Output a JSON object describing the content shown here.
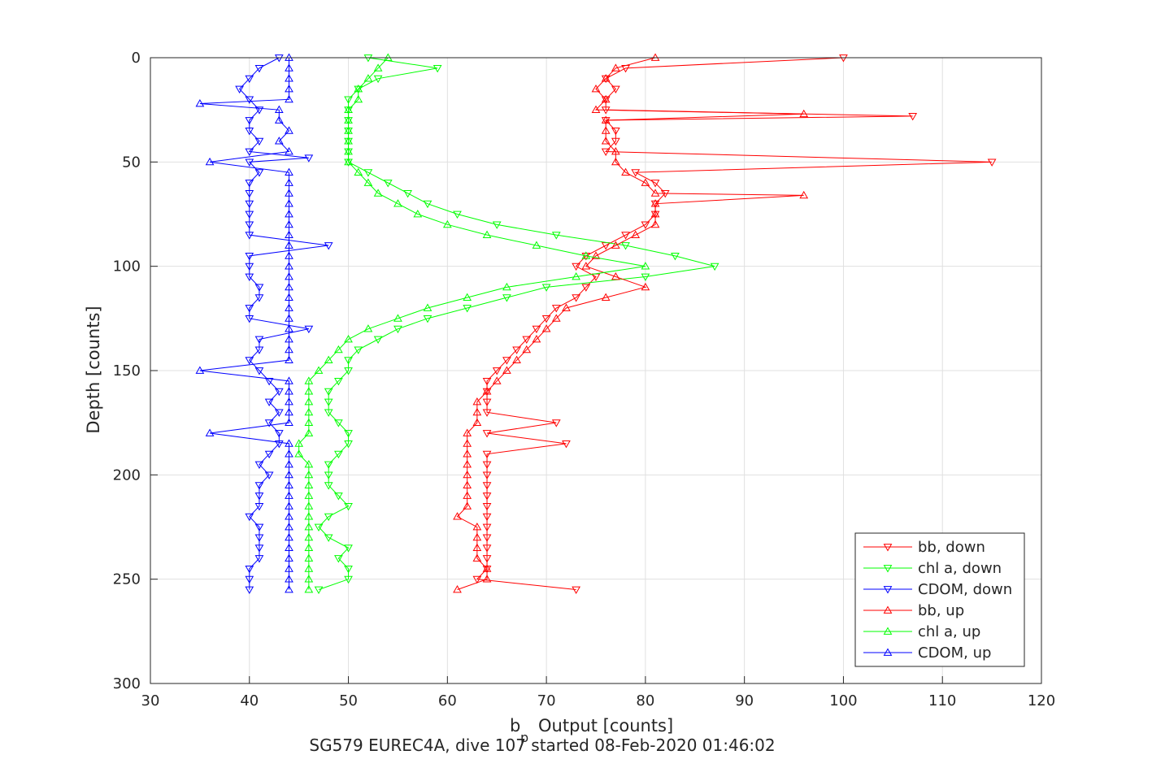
{
  "chart_data": {
    "type": "line",
    "xlabel": "Output [counts]",
    "xlabel_main": "b",
    "xlabel_sub": "p",
    "ylabel": "Depth [counts]",
    "caption": "SG579 EUREC4A, dive 107 started 08-Feb-2020 01:46:02",
    "xlim": [
      30,
      120
    ],
    "ylim": [
      0,
      300
    ],
    "y_reversed": true,
    "x_ticks": [
      30,
      40,
      50,
      60,
      70,
      80,
      90,
      100,
      110,
      120
    ],
    "y_ticks": [
      0,
      50,
      100,
      150,
      200,
      250,
      300
    ],
    "grid": true,
    "legend_position": "bottom-right",
    "series": [
      {
        "name": "bb, down",
        "color": "#ff0000",
        "marker": "triangle-down",
        "depth": [
          0,
          5,
          10,
          15,
          20,
          25,
          28,
          30,
          35,
          40,
          45,
          50,
          55,
          60,
          65,
          70,
          75,
          80,
          85,
          90,
          95,
          100,
          105,
          110,
          115,
          120,
          125,
          130,
          135,
          140,
          145,
          150,
          155,
          160,
          165,
          170,
          175,
          180,
          185,
          190,
          195,
          200,
          205,
          210,
          215,
          220,
          225,
          230,
          235,
          240,
          245,
          250,
          255
        ],
        "values": [
          100,
          78,
          76,
          77,
          76,
          76,
          107,
          76,
          77,
          77,
          76,
          115,
          79,
          81,
          82,
          81,
          81,
          80,
          78,
          76,
          74,
          73,
          75,
          74,
          73,
          71,
          70,
          69,
          68,
          67,
          66,
          65,
          64,
          64,
          64,
          64,
          71,
          64,
          72,
          64,
          64,
          64,
          64,
          64,
          64,
          64,
          64,
          64,
          64,
          64,
          64,
          63,
          73
        ]
      },
      {
        "name": "chl a, down",
        "color": "#00ff00",
        "marker": "triangle-down",
        "depth": [
          0,
          5,
          10,
          15,
          20,
          25,
          30,
          35,
          40,
          45,
          50,
          55,
          60,
          65,
          70,
          75,
          80,
          85,
          90,
          95,
          100,
          105,
          110,
          115,
          120,
          125,
          130,
          135,
          140,
          145,
          150,
          155,
          160,
          165,
          170,
          175,
          180,
          185,
          190,
          195,
          200,
          205,
          210,
          215,
          220,
          225,
          230,
          235,
          240,
          245,
          250,
          255
        ],
        "values": [
          52,
          59,
          53,
          51,
          50,
          50,
          50,
          50,
          50,
          50,
          50,
          52,
          54,
          56,
          58,
          61,
          65,
          71,
          78,
          83,
          87,
          80,
          70,
          66,
          62,
          58,
          55,
          53,
          51,
          50,
          50,
          49,
          48,
          48,
          48,
          49,
          50,
          50,
          49,
          48,
          48,
          48,
          49,
          50,
          48,
          47,
          48,
          50,
          49,
          50,
          50,
          47
        ]
      },
      {
        "name": "CDOM, down",
        "color": "#0000ff",
        "marker": "triangle-down",
        "depth": [
          0,
          5,
          10,
          15,
          20,
          25,
          30,
          35,
          40,
          45,
          48,
          50,
          55,
          60,
          65,
          70,
          75,
          80,
          85,
          90,
          95,
          100,
          105,
          110,
          115,
          120,
          125,
          130,
          135,
          140,
          145,
          150,
          155,
          160,
          165,
          170,
          175,
          180,
          185,
          190,
          195,
          200,
          205,
          210,
          215,
          220,
          225,
          230,
          235,
          240,
          245,
          250,
          255
        ],
        "values": [
          43,
          41,
          40,
          39,
          40,
          41,
          40,
          40,
          41,
          40,
          46,
          40,
          41,
          40,
          40,
          40,
          40,
          40,
          40,
          48,
          40,
          40,
          40,
          41,
          41,
          40,
          40,
          46,
          41,
          41,
          40,
          41,
          42,
          43,
          42,
          43,
          42,
          43,
          43,
          42,
          41,
          42,
          41,
          41,
          41,
          40,
          41,
          41,
          41,
          41,
          40,
          40,
          40
        ]
      },
      {
        "name": "bb, up",
        "color": "#ff0000",
        "marker": "triangle-up",
        "depth": [
          0,
          5,
          10,
          15,
          20,
          25,
          27,
          30,
          35,
          40,
          45,
          50,
          55,
          60,
          65,
          66,
          70,
          75,
          80,
          85,
          90,
          95,
          100,
          105,
          110,
          115,
          120,
          125,
          130,
          135,
          140,
          145,
          150,
          155,
          160,
          165,
          170,
          175,
          180,
          185,
          190,
          195,
          200,
          205,
          210,
          215,
          220,
          225,
          230,
          235,
          240,
          245,
          250,
          255
        ],
        "values": [
          81,
          77,
          76,
          75,
          76,
          75,
          96,
          76,
          76,
          76,
          77,
          77,
          78,
          80,
          81,
          96,
          81,
          81,
          81,
          79,
          77,
          75,
          74,
          77,
          80,
          76,
          72,
          71,
          70,
          69,
          68,
          67,
          66,
          65,
          64,
          63,
          63,
          63,
          62,
          62,
          62,
          62,
          62,
          62,
          62,
          62,
          61,
          63,
          63,
          63,
          63,
          64,
          64,
          61
        ]
      },
      {
        "name": "chl a, up",
        "color": "#00ff00",
        "marker": "triangle-up",
        "depth": [
          0,
          5,
          10,
          15,
          20,
          25,
          30,
          35,
          40,
          45,
          50,
          55,
          60,
          65,
          70,
          75,
          80,
          85,
          90,
          95,
          100,
          105,
          110,
          115,
          120,
          125,
          130,
          135,
          140,
          145,
          150,
          155,
          160,
          165,
          170,
          175,
          180,
          185,
          190,
          195,
          200,
          205,
          210,
          215,
          220,
          225,
          230,
          235,
          240,
          245,
          250,
          255
        ],
        "values": [
          54,
          53,
          52,
          51,
          51,
          50,
          50,
          50,
          50,
          50,
          50,
          51,
          52,
          53,
          55,
          57,
          60,
          64,
          69,
          74,
          80,
          73,
          66,
          62,
          58,
          55,
          52,
          50,
          49,
          48,
          47,
          46,
          46,
          46,
          46,
          46,
          46,
          45,
          45,
          46,
          46,
          46,
          46,
          46,
          46,
          46,
          46,
          46,
          46,
          46,
          46,
          46
        ]
      },
      {
        "name": "CDOM, up",
        "color": "#0000ff",
        "marker": "triangle-up",
        "depth": [
          0,
          5,
          10,
          15,
          20,
          22,
          25,
          30,
          35,
          40,
          45,
          50,
          55,
          60,
          65,
          70,
          75,
          80,
          85,
          90,
          95,
          100,
          105,
          110,
          115,
          120,
          125,
          130,
          135,
          140,
          145,
          150,
          155,
          160,
          165,
          170,
          175,
          180,
          185,
          190,
          195,
          200,
          205,
          210,
          215,
          220,
          225,
          230,
          235,
          240,
          245,
          250,
          255
        ],
        "values": [
          44,
          44,
          44,
          44,
          44,
          35,
          43,
          43,
          44,
          43,
          44,
          36,
          44,
          44,
          44,
          44,
          44,
          44,
          44,
          44,
          44,
          44,
          44,
          44,
          44,
          44,
          44,
          44,
          44,
          44,
          44,
          35,
          44,
          44,
          44,
          44,
          44,
          36,
          44,
          44,
          44,
          44,
          44,
          44,
          44,
          44,
          44,
          44,
          44,
          44,
          44,
          44,
          44
        ]
      }
    ]
  }
}
